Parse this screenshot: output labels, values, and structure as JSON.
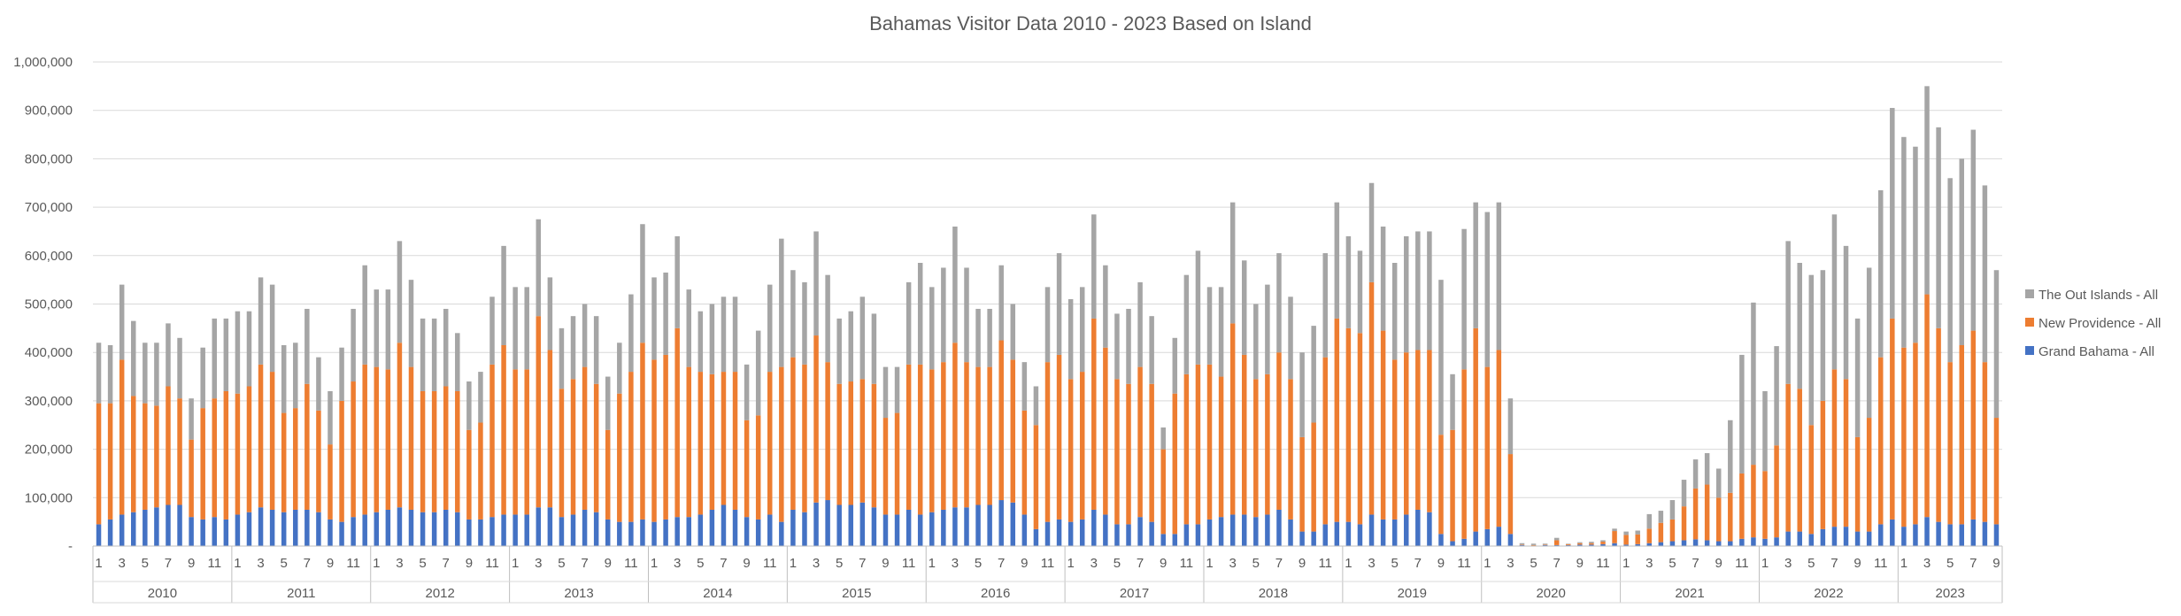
{
  "chart_data": {
    "type": "bar",
    "stacked": true,
    "title": "Bahamas Visitor Data 2010 - 2023 Based on Island",
    "xlabel": "",
    "ylabel": "",
    "ylim": [
      0,
      1000000
    ],
    "yticks": [
      "-",
      "100,000",
      "200,000",
      "300,000",
      "400,000",
      "500,000",
      "600,000",
      "700,000",
      "800,000",
      "900,000",
      "1,000,000"
    ],
    "years": [
      "2010",
      "2011",
      "2012",
      "2013",
      "2014",
      "2015",
      "2016",
      "2017",
      "2018",
      "2019",
      "2020",
      "2021",
      "2022",
      "2023"
    ],
    "months_per_year": [
      12,
      12,
      12,
      12,
      12,
      12,
      12,
      12,
      12,
      12,
      12,
      12,
      12,
      9
    ],
    "month_tick_labels": [
      "1",
      "3",
      "5",
      "7",
      "9",
      "11"
    ],
    "grid": true,
    "legend_position": "right",
    "series": [
      {
        "name": "Grand Bahama - All",
        "color": "#4472C4",
        "values": [
          45000,
          55000,
          65000,
          70000,
          75000,
          80000,
          85000,
          85000,
          60000,
          55000,
          60000,
          55000,
          65000,
          70000,
          80000,
          75000,
          70000,
          75000,
          75000,
          70000,
          55000,
          50000,
          60000,
          65000,
          70000,
          75000,
          80000,
          75000,
          70000,
          70000,
          75000,
          70000,
          55000,
          55000,
          60000,
          65000,
          65000,
          65000,
          80000,
          80000,
          60000,
          65000,
          75000,
          70000,
          55000,
          50000,
          50000,
          55000,
          50000,
          55000,
          60000,
          60000,
          65000,
          75000,
          85000,
          75000,
          60000,
          55000,
          65000,
          50000,
          75000,
          70000,
          90000,
          95000,
          85000,
          85000,
          90000,
          80000,
          65000,
          65000,
          75000,
          65000,
          70000,
          75000,
          80000,
          80000,
          85000,
          85000,
          95000,
          90000,
          65000,
          35000,
          50000,
          55000,
          50000,
          55000,
          75000,
          65000,
          45000,
          45000,
          60000,
          50000,
          25000,
          25000,
          45000,
          45000,
          55000,
          60000,
          65000,
          65000,
          60000,
          65000,
          75000,
          55000,
          30000,
          30000,
          45000,
          50000,
          50000,
          45000,
          65000,
          55000,
          55000,
          65000,
          75000,
          70000,
          25000,
          10000,
          15000,
          30000,
          35000,
          40000,
          25000,
          2000,
          1000,
          2000,
          2000,
          2000,
          3000,
          3000,
          4000,
          6000,
          3000,
          4000,
          6000,
          8000,
          10000,
          12000,
          14000,
          12000,
          10000,
          10000,
          15000,
          18000,
          15000,
          18000,
          30000,
          30000,
          25000,
          35000,
          40000,
          40000,
          30000,
          30000,
          45000,
          55000,
          40000,
          45000,
          60000,
          50000,
          45000,
          45000,
          55000,
          50000,
          45000
        ]
      },
      {
        "name": "New Providence - All",
        "color": "#ED7D31",
        "values": [
          250000,
          240000,
          320000,
          240000,
          220000,
          210000,
          245000,
          220000,
          160000,
          230000,
          245000,
          265000,
          250000,
          260000,
          295000,
          285000,
          205000,
          210000,
          260000,
          210000,
          155000,
          250000,
          280000,
          310000,
          300000,
          290000,
          340000,
          295000,
          250000,
          250000,
          255000,
          250000,
          185000,
          200000,
          315000,
          350000,
          300000,
          300000,
          395000,
          325000,
          265000,
          280000,
          295000,
          265000,
          185000,
          265000,
          310000,
          365000,
          335000,
          340000,
          390000,
          310000,
          295000,
          280000,
          275000,
          285000,
          200000,
          215000,
          295000,
          320000,
          315000,
          305000,
          345000,
          285000,
          250000,
          255000,
          255000,
          255000,
          200000,
          210000,
          300000,
          310000,
          295000,
          305000,
          340000,
          300000,
          285000,
          285000,
          330000,
          295000,
          215000,
          215000,
          330000,
          340000,
          295000,
          305000,
          395000,
          345000,
          300000,
          290000,
          310000,
          285000,
          175000,
          290000,
          310000,
          330000,
          320000,
          290000,
          395000,
          330000,
          285000,
          290000,
          325000,
          290000,
          195000,
          225000,
          345000,
          420000,
          400000,
          395000,
          480000,
          390000,
          330000,
          335000,
          330000,
          335000,
          205000,
          230000,
          350000,
          420000,
          335000,
          365000,
          165000,
          1000,
          1000,
          1000,
          10000,
          2000,
          3000,
          3000,
          5000,
          25000,
          20000,
          20000,
          30000,
          40000,
          45000,
          70000,
          105000,
          115000,
          90000,
          100000,
          135000,
          150000,
          140000,
          190000,
          305000,
          295000,
          225000,
          265000,
          325000,
          305000,
          195000,
          235000,
          345000,
          415000,
          370000,
          375000,
          460000,
          400000,
          335000,
          370000,
          390000,
          330000,
          220000
        ]
      },
      {
        "name": "The Out Islands - All",
        "color": "#A5A5A5",
        "values": [
          125000,
          120000,
          155000,
          155000,
          125000,
          130000,
          130000,
          125000,
          85000,
          125000,
          165000,
          150000,
          170000,
          155000,
          180000,
          180000,
          140000,
          135000,
          155000,
          110000,
          110000,
          110000,
          150000,
          205000,
          160000,
          165000,
          210000,
          180000,
          150000,
          150000,
          160000,
          120000,
          100000,
          105000,
          140000,
          205000,
          170000,
          170000,
          200000,
          150000,
          125000,
          130000,
          130000,
          140000,
          110000,
          105000,
          160000,
          245000,
          170000,
          170000,
          190000,
          160000,
          125000,
          145000,
          155000,
          155000,
          115000,
          175000,
          180000,
          265000,
          180000,
          170000,
          215000,
          180000,
          135000,
          145000,
          170000,
          145000,
          105000,
          95000,
          170000,
          210000,
          170000,
          195000,
          240000,
          195000,
          120000,
          120000,
          155000,
          115000,
          100000,
          80000,
          155000,
          210000,
          165000,
          175000,
          215000,
          170000,
          135000,
          155000,
          175000,
          140000,
          45000,
          115000,
          205000,
          235000,
          160000,
          185000,
          250000,
          195000,
          155000,
          185000,
          205000,
          170000,
          175000,
          200000,
          215000,
          240000,
          190000,
          170000,
          205000,
          215000,
          200000,
          240000,
          245000,
          245000,
          320000,
          115000,
          290000,
          260000,
          320000,
          305000,
          115000,
          3000,
          3000,
          2000,
          5000,
          1000,
          2000,
          3000,
          3000,
          5000,
          7000,
          8000,
          30000,
          25000,
          40000,
          55000,
          60000,
          65000,
          60000,
          150000,
          245000,
          335000,
          165000,
          205000,
          295000,
          260000,
          310000,
          270000,
          320000,
          275000,
          245000,
          310000,
          345000,
          435000,
          435000,
          405000,
          430000,
          415000,
          380000,
          385000,
          415000,
          365000,
          305000
        ]
      }
    ]
  }
}
